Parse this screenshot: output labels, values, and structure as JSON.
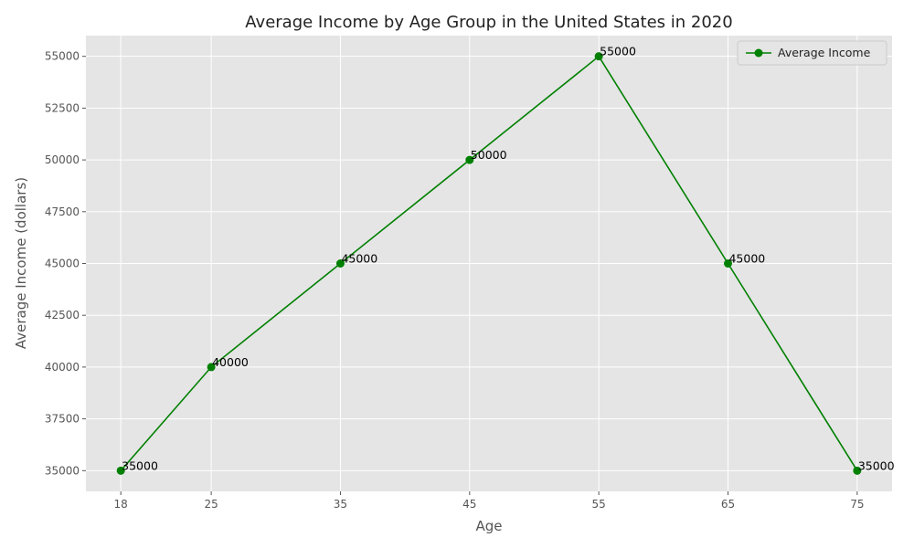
{
  "chart_data": {
    "type": "line",
    "title": "Average Income by Age Group in the United States in 2020",
    "xlabel": "Age",
    "ylabel": "Average Income (dollars)",
    "x": [
      18,
      25,
      35,
      45,
      55,
      65,
      75
    ],
    "series": [
      {
        "name": "Average Income",
        "values": [
          35000,
          40000,
          45000,
          50000,
          55000,
          45000,
          35000
        ],
        "color": "#008000",
        "marker": "circle"
      }
    ],
    "xlim": [
      15.3,
      77.7
    ],
    "ylim": [
      34000,
      56000
    ],
    "x_ticks": [
      18,
      25,
      35,
      45,
      55,
      65,
      75
    ],
    "y_ticks": [
      35000,
      37500,
      40000,
      42500,
      45000,
      47500,
      50000,
      52500,
      55000
    ],
    "grid": true,
    "legend_position": "top-right",
    "data_labels": true,
    "plot_background": "#e5e5e5"
  }
}
